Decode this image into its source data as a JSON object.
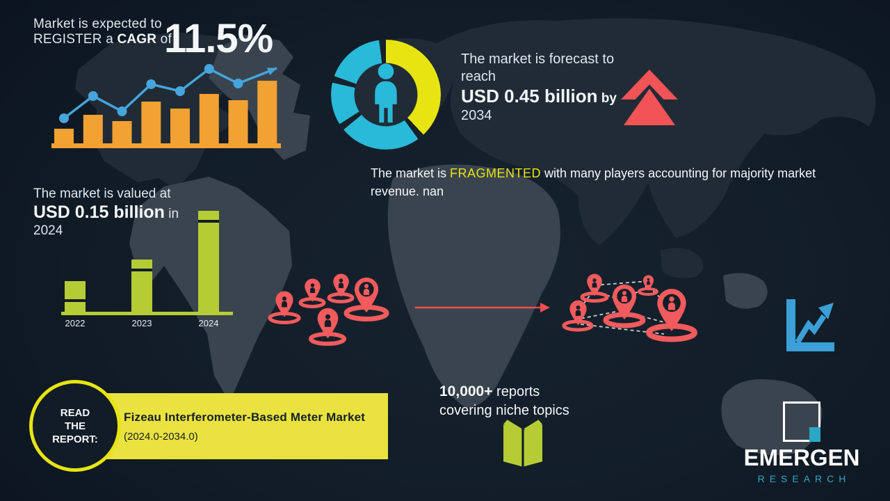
{
  "colors": {
    "background": "#121d28",
    "orange": "#f2a133",
    "blue": "#45a5dc",
    "teal": "#29b9d9",
    "yellow": "#e8e412",
    "coral": "#f15b5d",
    "green": "#b6cc35",
    "banner_yellow": "#eae23e",
    "logo_teal": "#2ba7c4",
    "text": "#dfe7ed"
  },
  "cagr": {
    "line1": "Market is expected to",
    "line2_pre": "REGISTER a ",
    "line2_bold": "CAGR",
    "line2_post": " of",
    "value": "11.5%"
  },
  "forecast": {
    "line1": "The market is forecast to",
    "line2": "reach",
    "value": "USD 0.45 billion",
    "by": " by",
    "year": "2034"
  },
  "fragmented": {
    "pre": "The market is ",
    "highlight": "FRAGMENTED",
    "post": " with many players accounting for majority market revenue. nan"
  },
  "valuation": {
    "line1": "The market is valued at",
    "value": "USD 0.15 billion",
    "in_word": " in",
    "year": "2024"
  },
  "read_report": {
    "circle_lines": [
      "READ",
      "THE",
      "REPORT:"
    ],
    "title": "Fizeau Interferometer-Based Meter Market",
    "range": "(2024.0-2034.0)"
  },
  "reports": {
    "count": "10,000+",
    "count_suffix": " reports",
    "line2": "covering niche topics"
  },
  "logo": {
    "name": "EMERGEN",
    "sub": "RESEARCH"
  },
  "chart_data": [
    {
      "id": "cagr-trend",
      "type": "bar",
      "title": "CAGR upward trend (decorative, unlabeled bars with line overlay ending in arrow)",
      "categories": [
        "",
        "",
        "",
        "",
        "",
        "",
        "",
        ""
      ],
      "values": [
        23,
        46,
        36,
        67,
        56,
        79,
        69,
        100
      ],
      "value_units": "relative height, max=100",
      "line_overlay": {
        "type": "line",
        "values": [
          36,
          68,
          46,
          85,
          75,
          107,
          86
        ],
        "ends_with": "up-right arrow"
      },
      "colors": {
        "bar": "#f2a133",
        "line": "#45a5dc"
      },
      "xlabel": "",
      "ylabel": "",
      "grid": false
    },
    {
      "id": "forecast-donut",
      "type": "pie",
      "title": "Decorative donut around person icon",
      "slices": [
        {
          "name": "yellow-segment",
          "value": 40,
          "color": "#e8e412"
        },
        {
          "name": "teal-segment-1",
          "value": 26,
          "color": "#29b9d9"
        },
        {
          "name": "teal-segment-2",
          "value": 14.5,
          "color": "#29b9d9"
        },
        {
          "name": "teal-segment-3",
          "value": 19.5,
          "color": "#29b9d9"
        }
      ],
      "gap": 2,
      "gap_color": "#16212c",
      "donut_hole_pct": 57,
      "legend": false
    },
    {
      "id": "valuation",
      "type": "bar",
      "title": "Market value by year",
      "categories": [
        "2022",
        "2023",
        "2024"
      ],
      "values": [
        30,
        52,
        100
      ],
      "value_units": "relative height; 2024 bar corresponds to USD 0.15 billion",
      "color": "#b6cc35",
      "grid": false
    }
  ]
}
